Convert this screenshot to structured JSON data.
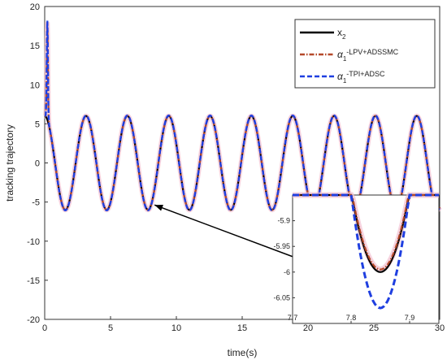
{
  "chart_data": {
    "type": "line",
    "xlabel": "time(s)",
    "ylabel": "tracking trajectory",
    "xlim": [
      0,
      30
    ],
    "ylim": [
      -20,
      20
    ],
    "xticks": [
      "0",
      "5",
      "10",
      "15",
      "20",
      "25",
      "30"
    ],
    "yticks": [
      "20",
      "15",
      "10",
      "5",
      "0",
      "-5",
      "-10",
      "-15",
      "-20"
    ],
    "grid": true,
    "legend_position": "top-right",
    "signal": {
      "amplitude": 6,
      "period_s": 3.14,
      "spike_time_s": 0.2,
      "spike_peak": 18,
      "minimum": -6
    },
    "series": [
      {
        "name": "x",
        "name_sub": "2",
        "color": "#000000",
        "style": "solid",
        "legend_sub": "",
        "legend_sup": "2"
      },
      {
        "name": "α",
        "name_sub": "1",
        "legend_sup": "-LPV+ADSSMC",
        "color": "#b5492a",
        "style": "dashdot"
      },
      {
        "name": "α",
        "name_sub": "1",
        "legend_sup": "-TPI+ADSC",
        "color": "#1f3fe0",
        "style": "dashed"
      }
    ],
    "inset": {
      "xlim": [
        7.7,
        7.95
      ],
      "ylim": [
        -6.1,
        -5.85
      ],
      "xticks": [
        "7.7",
        "7.8",
        "7.9"
      ],
      "yticks": [
        "-5.9",
        "-5.95",
        "-6",
        "-6.05"
      ],
      "x2_min": -6.0,
      "lpv_min": -5.995,
      "tpi_min": -6.07,
      "center_x": 7.85
    }
  }
}
